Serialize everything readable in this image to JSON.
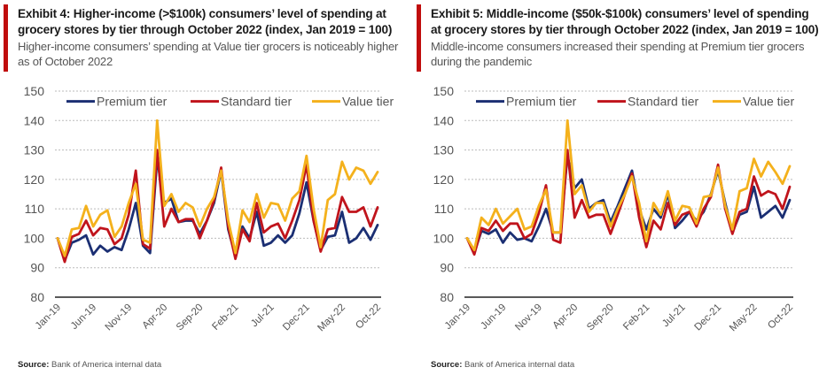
{
  "colors": {
    "premium": "#1b2f73",
    "standard": "#c0141c",
    "value": "#f4b11c",
    "accent": "#c00d0d",
    "grid": "#bbbbbb",
    "axis": "#222222"
  },
  "chart_data": [
    {
      "type": "line",
      "title": "Exhibit 4: Higher-income (>$100k) consumers’ level of spending at grocery stores by tier through October 2022 (index, Jan 2019 = 100)",
      "subtitle": "Higher-income consumers’ spending at Value tier grocers is noticeably higher as of October 2022",
      "source_label": "Source:",
      "source_text": "Bank of America internal data",
      "xlabel": "",
      "ylabel": "",
      "ylim": [
        80,
        150
      ],
      "yticks": [
        80,
        90,
        100,
        110,
        120,
        130,
        140,
        150
      ],
      "x_tick_labels": [
        "Jan-19",
        "Jun-19",
        "Nov-19",
        "Apr-20",
        "Sep-20",
        "Feb-21",
        "Jul-21",
        "Dec-21",
        "May-22",
        "Oct-22"
      ],
      "x_tick_step_months": 5,
      "grid": true,
      "legend": "top",
      "series": [
        {
          "name": "Premium tier",
          "key": "premium",
          "values": [
            100,
            92.5,
            98.5,
            99.5,
            101,
            94.5,
            97.5,
            95.5,
            97,
            96,
            103,
            112,
            97.5,
            95,
            127,
            112,
            113.5,
            105.5,
            106,
            106,
            101.5,
            106,
            112,
            123,
            103,
            94,
            104,
            100,
            109,
            97.5,
            98.5,
            101,
            98.5,
            101,
            108.5,
            119,
            106,
            96,
            100.5,
            101,
            109,
            98.5,
            100,
            103.5,
            99.5,
            104.5
          ]
        },
        {
          "name": "Standard tier",
          "key": "standard",
          "values": [
            100,
            92,
            100.5,
            101.5,
            106,
            101,
            103.5,
            103,
            98,
            100,
            108,
            123,
            98,
            96.5,
            130,
            104,
            110,
            105.5,
            106.5,
            106.5,
            100,
            106,
            113,
            124,
            104,
            93,
            103,
            99,
            112,
            102,
            104,
            105,
            100,
            106,
            113,
            125,
            106,
            95.5,
            103,
            103.5,
            114,
            109,
            109,
            110.5,
            104,
            110.5
          ]
        },
        {
          "name": "Value tier",
          "key": "value",
          "values": [
            100,
            94,
            103,
            103.5,
            111,
            104,
            108,
            109.5,
            100.5,
            104,
            112,
            118.5,
            99.5,
            98.5,
            140,
            111,
            115,
            109,
            112,
            110.5,
            104,
            110,
            114,
            123,
            106,
            95,
            109.5,
            105.5,
            115,
            107,
            112,
            111.5,
            106,
            113.5,
            116,
            128,
            110,
            97,
            113,
            115,
            126,
            120,
            124,
            123,
            118.5,
            122.5
          ]
        }
      ]
    },
    {
      "type": "line",
      "title": "Exhibit 5: Middle-income ($50k-$100k) consumers’ level of spending at grocery stores by tier through October 2022 (index, Jan 2019 = 100)",
      "subtitle": "Middle-income consumers increased their spending at Premium tier grocers during the pandemic",
      "source_label": "Source:",
      "source_text": "Bank of America internal data",
      "xlabel": "",
      "ylabel": "",
      "ylim": [
        80,
        150
      ],
      "yticks": [
        80,
        90,
        100,
        110,
        120,
        130,
        140,
        150
      ],
      "x_tick_labels": [
        "Jan-19",
        "Jun-19",
        "Nov-19",
        "Apr-20",
        "Sep-20",
        "Feb-21",
        "Jul-21",
        "Dec-21",
        "May-22",
        "Oct-22"
      ],
      "x_tick_step_months": 5,
      "grid": true,
      "legend": "top",
      "series": [
        {
          "name": "Premium tier",
          "key": "premium",
          "values": [
            100,
            95,
            102.5,
            101.5,
            103,
            98.5,
            102,
            99.5,
            100,
            99,
            104,
            110,
            102,
            102,
            128,
            117,
            120,
            110,
            112,
            113,
            105.5,
            111,
            117,
            123,
            110,
            103,
            110,
            107,
            115,
            103.5,
            106,
            109,
            106,
            109,
            115,
            123,
            112,
            102,
            108,
            109,
            117.5,
            107,
            109,
            111,
            107,
            113
          ]
        },
        {
          "name": "Standard tier",
          "key": "standard",
          "values": [
            100,
            94.5,
            103.5,
            102.5,
            106,
            102.5,
            105,
            105,
            100,
            101.5,
            108.5,
            118,
            99.5,
            98.5,
            130,
            107,
            113,
            107,
            108,
            108,
            101.5,
            108,
            115,
            122,
            107,
            97,
            106,
            103,
            112,
            104.5,
            108,
            109,
            104,
            110,
            114,
            125,
            110,
            101.5,
            109,
            110,
            121,
            114.5,
            116,
            115,
            110,
            117.5
          ]
        },
        {
          "name": "Value tier",
          "key": "value",
          "values": [
            100,
            96,
            107,
            104.5,
            110,
            105,
            107.5,
            110,
            103,
            104,
            111,
            116.5,
            102,
            102,
            140,
            115,
            118,
            109,
            112,
            112,
            104,
            110,
            115,
            121,
            112,
            99,
            112,
            108,
            116,
            106,
            111,
            110.5,
            105,
            114,
            114.5,
            124,
            111,
            103,
            116,
            117,
            127,
            121,
            126,
            122.5,
            118.5,
            124.5
          ]
        }
      ]
    }
  ]
}
